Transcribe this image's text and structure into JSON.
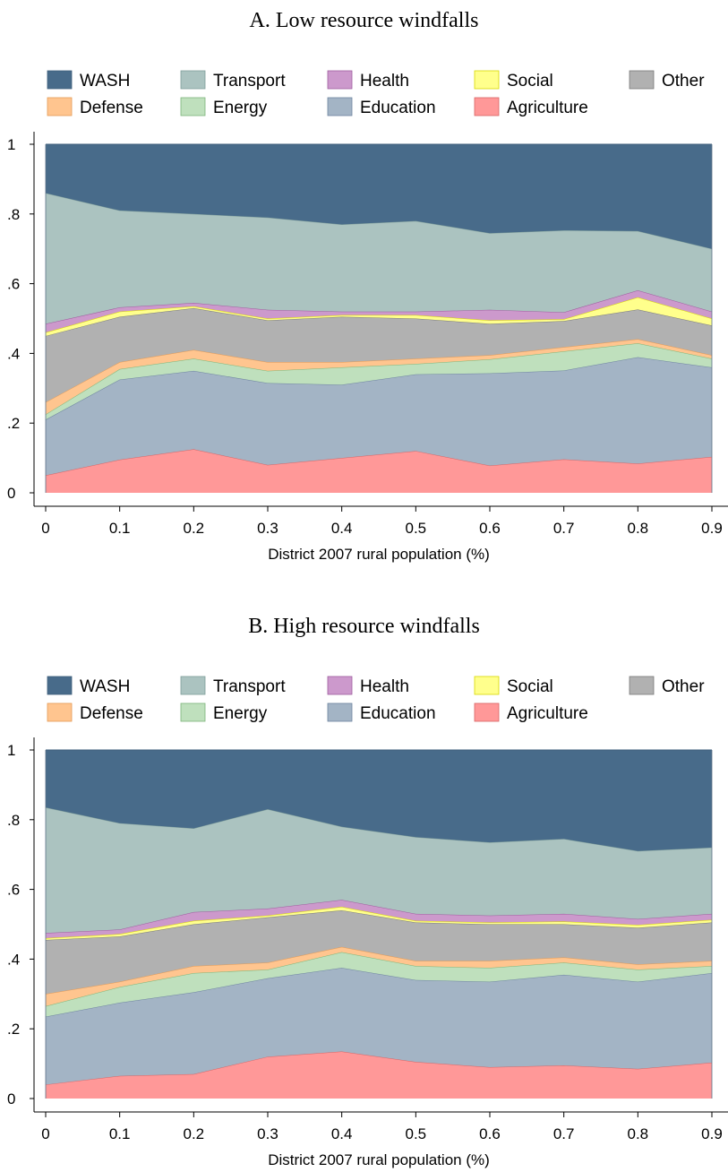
{
  "chart_data": [
    {
      "type": "area",
      "stacked": true,
      "title": "A. Low resource windfalls",
      "xlabel": "District 2007 rural population (%)",
      "ylabel": "",
      "x": [
        0,
        0.1,
        0.2,
        0.3,
        0.4,
        0.5,
        0.6,
        0.7,
        0.8,
        0.9
      ],
      "x_tick_labels": [
        "0",
        "0.1",
        "0.2",
        "0.3",
        "0.4",
        "0.5",
        "0.6",
        "0.7",
        "0.8",
        "0.9"
      ],
      "y_tick_values": [
        0,
        0.2,
        0.4,
        0.6,
        0.8,
        1
      ],
      "y_tick_labels": [
        "0",
        ".2",
        ".4",
        ".6",
        ".8",
        "1"
      ],
      "ylim": [
        0,
        1
      ],
      "grid": false,
      "legend_position": "top",
      "series": [
        {
          "name": "Agriculture",
          "values": [
            0.05,
            0.095,
            0.125,
            0.08,
            0.1,
            0.12,
            0.078,
            0.096,
            0.084,
            0.103
          ]
        },
        {
          "name": "Education",
          "values": [
            0.16,
            0.23,
            0.225,
            0.235,
            0.21,
            0.22,
            0.265,
            0.255,
            0.305,
            0.257
          ]
        },
        {
          "name": "Energy",
          "values": [
            0.015,
            0.03,
            0.035,
            0.035,
            0.05,
            0.03,
            0.04,
            0.055,
            0.04,
            0.025
          ]
        },
        {
          "name": "Defense",
          "values": [
            0.035,
            0.02,
            0.025,
            0.025,
            0.015,
            0.015,
            0.012,
            0.012,
            0.012,
            0.01
          ]
        },
        {
          "name": "Other",
          "values": [
            0.19,
            0.13,
            0.12,
            0.12,
            0.13,
            0.115,
            0.09,
            0.075,
            0.085,
            0.085
          ]
        },
        {
          "name": "Social",
          "values": [
            0.01,
            0.015,
            0.005,
            0.005,
            0.005,
            0.01,
            0.01,
            0.005,
            0.035,
            0.02
          ]
        },
        {
          "name": "Health",
          "values": [
            0.025,
            0.012,
            0.01,
            0.025,
            0.01,
            0.01,
            0.03,
            0.02,
            0.02,
            0.02
          ]
        },
        {
          "name": "Transport",
          "values": [
            0.375,
            0.278,
            0.255,
            0.265,
            0.25,
            0.26,
            0.22,
            0.235,
            0.17,
            0.18
          ]
        },
        {
          "name": "WASH",
          "values": [
            0.14,
            0.19,
            0.2,
            0.21,
            0.23,
            0.22,
            0.255,
            0.247,
            0.249,
            0.3
          ]
        }
      ]
    },
    {
      "type": "area",
      "stacked": true,
      "title": "B. High resource windfalls",
      "xlabel": "District 2007 rural population (%)",
      "ylabel": "",
      "x": [
        0,
        0.1,
        0.2,
        0.3,
        0.4,
        0.5,
        0.6,
        0.7,
        0.8,
        0.9
      ],
      "x_tick_labels": [
        "0",
        "0.1",
        "0.2",
        "0.3",
        "0.4",
        "0.5",
        "0.6",
        "0.7",
        "0.8",
        "0.9"
      ],
      "y_tick_values": [
        0,
        0.2,
        0.4,
        0.6,
        0.8,
        1
      ],
      "y_tick_labels": [
        "0",
        ".2",
        ".4",
        ".6",
        ".8",
        "1"
      ],
      "ylim": [
        0,
        1
      ],
      "grid": false,
      "legend_position": "top",
      "series": [
        {
          "name": "Agriculture",
          "values": [
            0.04,
            0.065,
            0.07,
            0.12,
            0.135,
            0.105,
            0.09,
            0.095,
            0.085,
            0.103
          ]
        },
        {
          "name": "Education",
          "values": [
            0.195,
            0.21,
            0.235,
            0.225,
            0.24,
            0.235,
            0.245,
            0.26,
            0.25,
            0.257
          ]
        },
        {
          "name": "Energy",
          "values": [
            0.03,
            0.045,
            0.055,
            0.025,
            0.045,
            0.04,
            0.04,
            0.035,
            0.035,
            0.02
          ]
        },
        {
          "name": "Defense",
          "values": [
            0.035,
            0.015,
            0.02,
            0.02,
            0.015,
            0.015,
            0.02,
            0.015,
            0.015,
            0.015
          ]
        },
        {
          "name": "Other",
          "values": [
            0.155,
            0.13,
            0.12,
            0.13,
            0.105,
            0.11,
            0.105,
            0.095,
            0.105,
            0.11
          ]
        },
        {
          "name": "Social",
          "values": [
            0.005,
            0.007,
            0.01,
            0.005,
            0.01,
            0.005,
            0.005,
            0.008,
            0.008,
            0.008
          ]
        },
        {
          "name": "Health",
          "values": [
            0.015,
            0.013,
            0.025,
            0.02,
            0.02,
            0.02,
            0.02,
            0.022,
            0.017,
            0.017
          ]
        },
        {
          "name": "Transport",
          "values": [
            0.36,
            0.305,
            0.24,
            0.285,
            0.21,
            0.22,
            0.21,
            0.215,
            0.195,
            0.19
          ]
        },
        {
          "name": "WASH",
          "values": [
            0.165,
            0.21,
            0.225,
            0.17,
            0.22,
            0.25,
            0.265,
            0.255,
            0.29,
            0.28
          ]
        }
      ]
    }
  ],
  "colors": {
    "WASH": {
      "fill": "#486b8a",
      "stroke": "#3e5e7b"
    },
    "Transport": {
      "fill": "#abc3c0",
      "stroke": "#7f9e9a"
    },
    "Health": {
      "fill": "#cc99cc",
      "stroke": "#9e5d9e"
    },
    "Social": {
      "fill": "#ffff8c",
      "stroke": "#d8d800"
    },
    "Other": {
      "fill": "#b1b1b1",
      "stroke": "#7a7a7a"
    },
    "Defense": {
      "fill": "#ffc58f",
      "stroke": "#e49a55"
    },
    "Energy": {
      "fill": "#bfe0bd",
      "stroke": "#7db57a"
    },
    "Education": {
      "fill": "#a3b4c5",
      "stroke": "#6e84a0"
    },
    "Agriculture": {
      "fill": "#ff9898",
      "stroke": "#d86464"
    }
  },
  "legend": [
    [
      "WASH",
      "Transport",
      "Health",
      "Social",
      "Other"
    ],
    [
      "Defense",
      "Energy",
      "Education",
      "Agriculture"
    ]
  ]
}
